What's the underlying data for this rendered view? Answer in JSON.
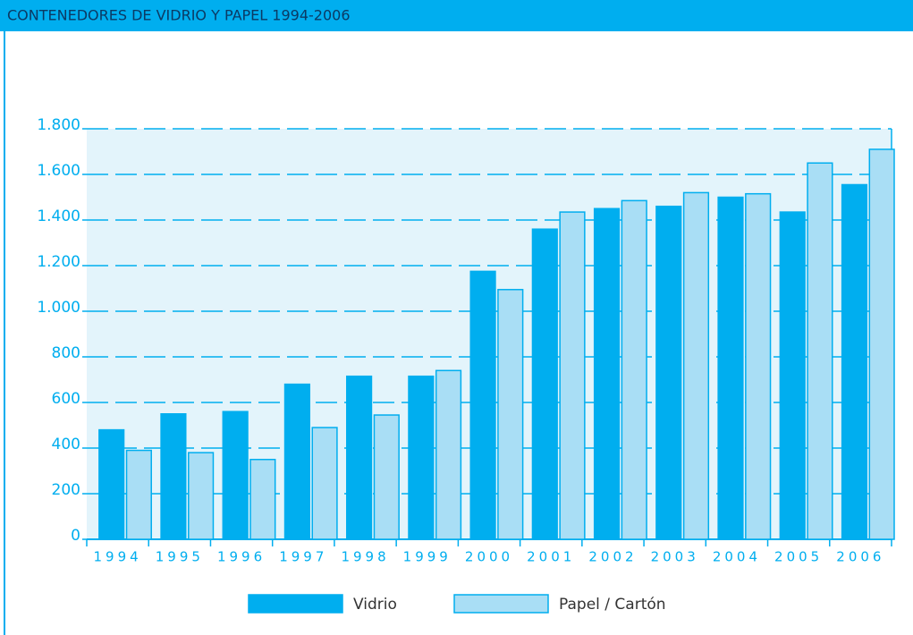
{
  "chart_data": {
    "type": "bar",
    "title": "CONTENEDORES DE VIDRIO Y PAPEL 1994-2006",
    "categories": [
      "1994",
      "1995",
      "1996",
      "1997",
      "1998",
      "1999",
      "2000",
      "2001",
      "2002",
      "2003",
      "2004",
      "2005",
      "2006"
    ],
    "series": [
      {
        "name": "Vidrio",
        "color": "#00aeef",
        "values": [
          480,
          550,
          560,
          680,
          715,
          715,
          1175,
          1360,
          1450,
          1460,
          1500,
          1435,
          1555
        ]
      },
      {
        "name": "Papel / Cartón",
        "color": "#a9def5",
        "values": [
          390,
          380,
          350,
          490,
          545,
          740,
          1095,
          1435,
          1485,
          1520,
          1515,
          1650,
          1710
        ]
      }
    ],
    "ylim": [
      0,
      1800
    ],
    "yticks": [
      0,
      200,
      400,
      600,
      800,
      {
        "value": 1000,
        "label": "1.000"
      },
      {
        "value": 1200,
        "label": "1.200"
      },
      {
        "value": 1400,
        "label": "1.400"
      },
      {
        "value": 1600,
        "label": "1.600"
      },
      {
        "value": 1800,
        "label": "1.800"
      }
    ],
    "grid": true
  }
}
